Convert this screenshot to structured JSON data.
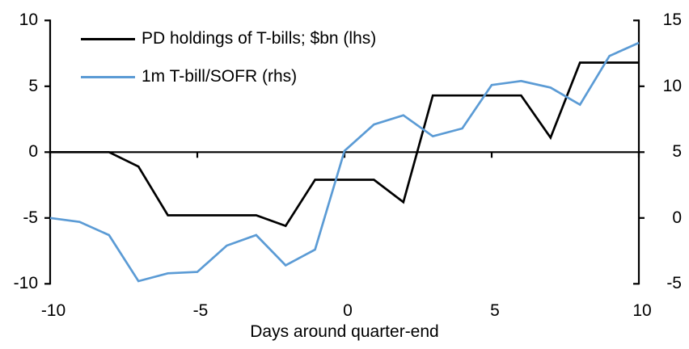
{
  "chart_data": {
    "type": "line",
    "title": "",
    "xlabel": "Days around quarter-end",
    "ylabel_left": "",
    "ylabel_right": "",
    "grid": "off",
    "legend_position": "top-left-inside",
    "x": [
      -10,
      -9,
      -8,
      -7,
      -6,
      -5,
      -4,
      -3,
      -2,
      -1,
      0,
      1,
      2,
      3,
      4,
      5,
      6,
      7,
      8,
      9,
      10
    ],
    "series": [
      {
        "name": "PD holdings of T-bills; $bn (lhs)",
        "axis": "lhs",
        "color": "#000000",
        "values": [
          0,
          0,
          0,
          -1.1,
          -4.8,
          -4.8,
          -4.8,
          -4.8,
          -5.6,
          -2.1,
          -2.1,
          -2.1,
          -3.8,
          4.3,
          4.3,
          4.3,
          4.3,
          1.1,
          6.8,
          6.8,
          6.8
        ]
      },
      {
        "name": "1m T-bill/SOFR (rhs)",
        "axis": "rhs",
        "color": "#5B9BD5",
        "values": [
          0,
          -0.3,
          -1.3,
          -4.8,
          -4.2,
          -4.1,
          -2.1,
          -1.3,
          -3.6,
          -2.4,
          5.1,
          7.1,
          7.8,
          6.2,
          6.8,
          10.1,
          10.4,
          9.9,
          8.6,
          12.3,
          13.3
        ]
      }
    ],
    "left_axis": {
      "range": [
        -10,
        10
      ],
      "ticks": [
        10,
        5,
        0,
        -5,
        -10
      ]
    },
    "right_axis": {
      "range": [
        -5,
        15
      ],
      "ticks": [
        15,
        10,
        5,
        0,
        -5
      ]
    },
    "x_axis": {
      "ticks": [
        -10,
        -5,
        0,
        5,
        10
      ],
      "zero_line": true
    }
  },
  "legend": {
    "items": [
      {
        "label": "PD holdings of T-bills; $bn (lhs)",
        "color": "#000000"
      },
      {
        "label": "1m T-bill/SOFR (rhs)",
        "color": "#5B9BD5"
      }
    ]
  },
  "axis_labels": {
    "x_title": "Days around quarter-end"
  },
  "colors": {
    "axis": "#000000",
    "text": "#000000",
    "background": "#FFFFFF",
    "series_black": "#000000",
    "series_blue": "#5B9BD5"
  }
}
